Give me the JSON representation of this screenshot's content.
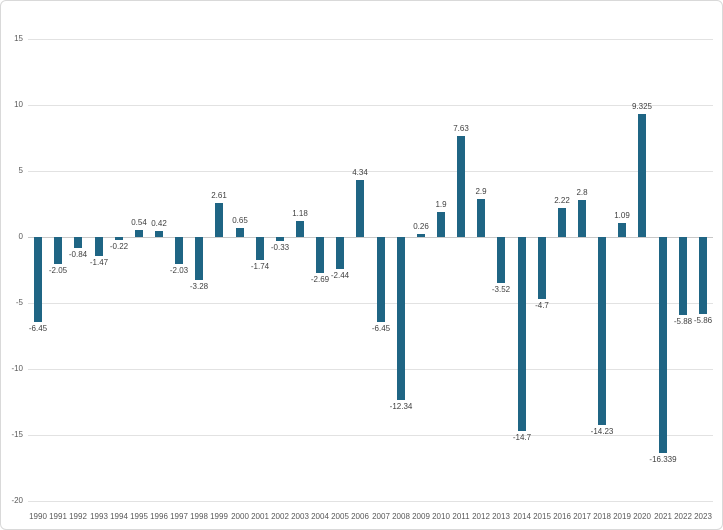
{
  "chart_data": {
    "type": "bar",
    "title": "",
    "xlabel": "",
    "ylabel": "",
    "legend": "none",
    "grid": true,
    "ylim": [
      -20,
      15
    ],
    "yticks": [
      15,
      10,
      5,
      0,
      -5,
      -10,
      -15,
      -20
    ],
    "categories": [
      "1990",
      "1991",
      "1992",
      "1993",
      "1994",
      "1995",
      "1996",
      "1997",
      "1998",
      "1999",
      "2000",
      "2001",
      "2002",
      "2003",
      "2004",
      "2005",
      "2006",
      "2007",
      "2008",
      "2009",
      "2010",
      "2011",
      "2012",
      "2013",
      "2014",
      "2015",
      "2016",
      "2017",
      "2018",
      "2019",
      "2020",
      "2021",
      "2022",
      "2023"
    ],
    "values": [
      -6.45,
      -2.05,
      -0.84,
      -1.47,
      -0.22,
      0.54,
      0.42,
      -2.03,
      -3.28,
      2.61,
      0.65,
      -1.74,
      -0.33,
      1.18,
      -2.69,
      -2.44,
      4.34,
      -6.45,
      -12.34,
      0.26,
      1.9,
      7.63,
      2.9,
      -3.52,
      -14.7,
      -4.7,
      2.22,
      2.8,
      -14.23,
      1.09,
      9.325,
      -16.339,
      -5.88,
      -5.86
    ],
    "data_labels": [
      "-6.45",
      "-2.05",
      "-0.84",
      "-1.47",
      "-0.22",
      "0.54",
      "0.42",
      "-2.03",
      "-3.28",
      "2.61",
      "0.65",
      "-1.74",
      "-0.33",
      "1.18",
      "-2.69",
      "-2.44",
      "4.34",
      "-6.45",
      "-12.34",
      "0.26",
      "1.9",
      "7.63",
      "2.9",
      "-3.52",
      "-14.7",
      "-4.7",
      "2.22",
      "2.8",
      "-14.23",
      "1.09",
      "9.325",
      "-16.339",
      "-5.88",
      "-5.86"
    ],
    "colors": {
      "bar": "#1f6584",
      "gridline": "#e2e2e2",
      "zero_line": "#c8c8c8",
      "data_label": "#3f3f3f",
      "axis_label": "#595959",
      "background": "#ffffff",
      "frame_border": "#d9d9d9"
    }
  }
}
